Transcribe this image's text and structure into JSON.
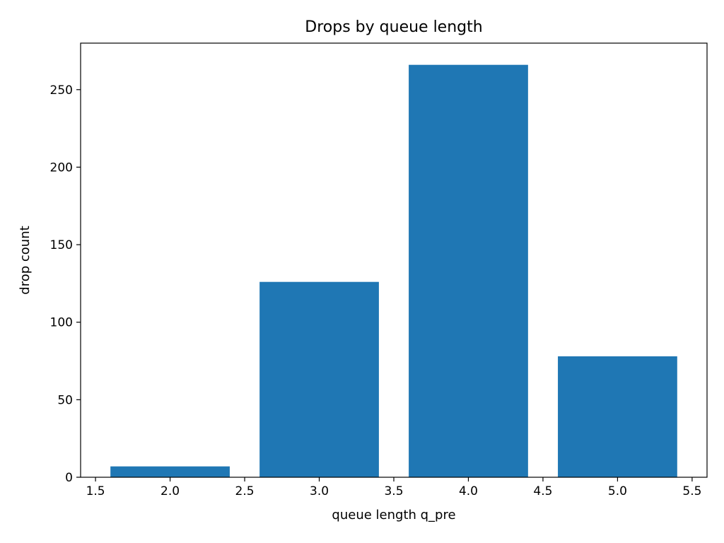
{
  "chart_data": {
    "type": "bar",
    "title": "Drops by queue length",
    "xlabel": "queue length q_pre",
    "ylabel": "drop count",
    "x": [
      2.0,
      3.0,
      4.0,
      5.0
    ],
    "values": [
      7,
      126,
      266,
      78
    ],
    "bar_width": 0.8,
    "xlim": [
      1.4,
      5.6
    ],
    "ylim": [
      0,
      280
    ],
    "xticks": [
      1.5,
      2.0,
      2.5,
      3.0,
      3.5,
      4.0,
      4.5,
      5.0,
      5.5
    ],
    "xtick_labels": [
      "1.5",
      "2.0",
      "2.5",
      "3.0",
      "3.5",
      "4.0",
      "4.5",
      "5.0",
      "5.5"
    ],
    "yticks": [
      0,
      50,
      100,
      150,
      200,
      250
    ],
    "ytick_labels": [
      "0",
      "50",
      "100",
      "150",
      "200",
      "250"
    ],
    "grid": false,
    "legend": "none",
    "bar_color": "#1f77b4"
  }
}
